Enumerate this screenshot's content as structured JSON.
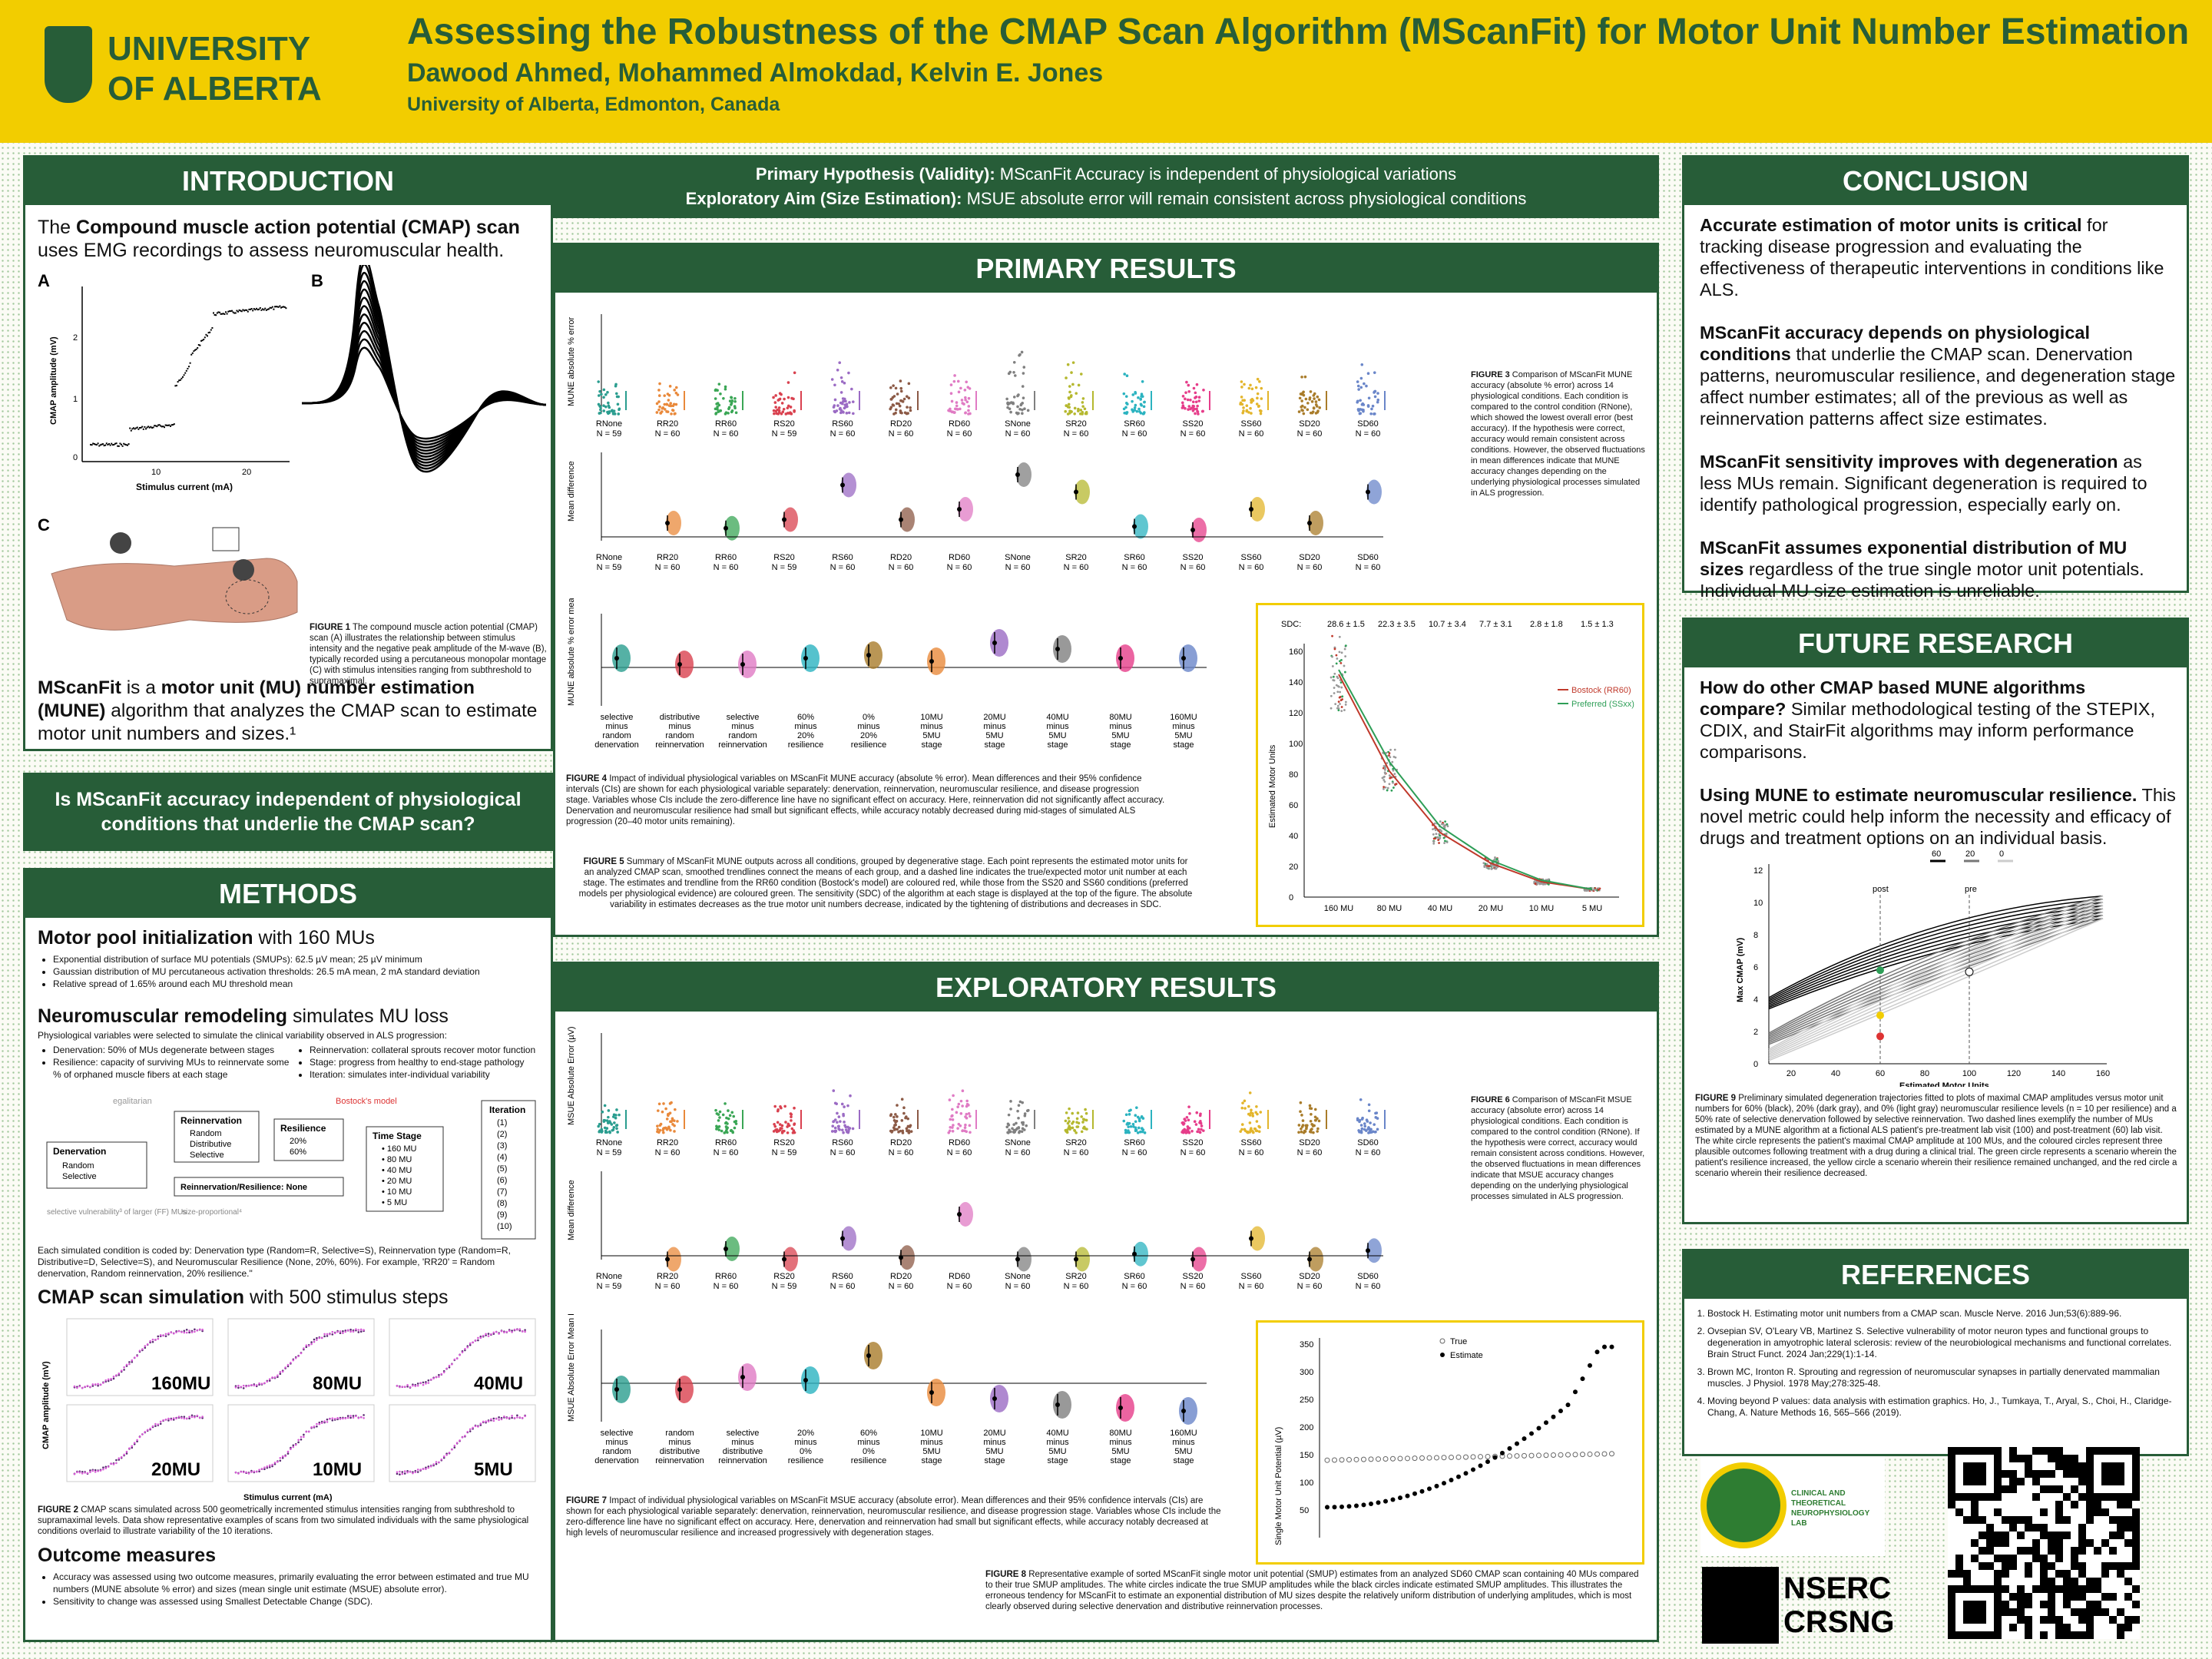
{
  "header": {
    "logo_text": "UNIVERSITY\nOF ALBERTA",
    "title": "Assessing the Robustness of the CMAP Scan Algorithm (MScanFit) for Motor Unit Number Estimation",
    "authors": "Dawood Ahmed, Mohammed Almokdad, Kelvin E. Jones",
    "affiliation": "University of Alberta, Edmonton, Canada"
  },
  "intro": {
    "heading": "INTRODUCTION",
    "p1_bold": "Compound muscle action potential (CMAP) scan",
    "p1_pre": "The ",
    "p1_post": " uses EMG recordings to assess neuromuscular health.",
    "labels": [
      "A",
      "B",
      "C"
    ],
    "axis_y": "CMAP amplitude (mV)",
    "axis_x": "Stimulus current (mA)",
    "ticks_x": [
      "10",
      "20"
    ],
    "ticks_y": [
      "0",
      "1",
      "2"
    ],
    "fig1_caption_bold": "FIGURE 1",
    "fig1_caption": " The compound muscle action potential (CMAP) scan (A) illustrates the relationship between stimulus intensity and the negative peak amplitude of the M-wave (B), typically recorded using a percutaneous monopolar montage (C) with stimulus intensities ranging from subthreshold to supramaximal.",
    "p2_pre": "MScanFit",
    "p2_mid": " is a ",
    "p2_bold": "motor unit (MU) number estimation (MUNE)",
    "p2_post": " algorithm that analyzes the CMAP scan to estimate motor unit numbers and sizes.¹"
  },
  "question": "Is MScanFit accuracy independent of physiological conditions that underlie the CMAP scan?",
  "methods": {
    "heading": "METHODS",
    "s1_bold": "Motor pool initialization",
    "s1_rest": " with 160 MUs",
    "s1_items": [
      "Exponential distribution of surface MU potentials (SMUPs): 62.5 µV mean; 25 µV minimum",
      "Gaussian distribution of MU percutaneous activation thresholds: 26.5 mA mean, 2 mA standard deviation",
      "Relative spread of 1.65% around each MU threshold mean"
    ],
    "s2_bold": "Neuromuscular remodeling",
    "s2_rest": " simulates MU loss",
    "s2_intro": "Physiological variables were selected to simulate the clinical variability observed in ALS progression:",
    "s2_left": [
      "Denervation: 50% of MUs degenerate between stages",
      "Resilience: capacity of surviving MUs to reinnervate some % of orphaned muscle fibers at each stage"
    ],
    "s2_right": [
      "Reinnervation: collateral sprouts recover motor function",
      "Stage: progress from healthy to end-stage pathology",
      "Iteration: simulates inter-individual variability"
    ],
    "diag": {
      "egalitarian": "egalitarian",
      "bostock": "Bostock's model",
      "denerv": "Denervation",
      "denerv_items": [
        "Random",
        "Selective"
      ],
      "reinn": "Reinnervation",
      "reinn_items": [
        "Random",
        "Distributive",
        "Selective"
      ],
      "resil": "Resilience",
      "resil_items": [
        "20%",
        "60%"
      ],
      "reinres": "Reinnervation/Resilience: None",
      "stage": "Time Stage",
      "stage_items": [
        "160 MU",
        "80 MU",
        "40 MU",
        "20 MU",
        "10 MU",
        "5 MU"
      ],
      "iter": "Iteration",
      "iter_items": [
        "(1)",
        "(2)",
        "(3)",
        "(4)",
        "(5)",
        "(6)",
        "(7)",
        "(8)",
        "(9)",
        "(10)"
      ],
      "selvul": "selective vulnerability³ of larger (FF) MUs",
      "sizeprop": "size-proportional⁴"
    },
    "code_text": "Each simulated condition is coded by: Denervation type (Random=R, Selective=S), Reinnervation type (Random=R, Distributive=D, Selective=S), and Neuromuscular Resilience (None, 20%, 60%). For example, 'RR20' = Random denervation, Random reinnervation, 20% resilience.\"",
    "s3_bold": "CMAP scan simulation",
    "s3_rest": " with 500 stimulus steps",
    "panels": [
      "160MU",
      "80MU",
      "40MU",
      "20MU",
      "10MU",
      "5MU"
    ],
    "fig2_ylabel": "CMAP amplitude (mV)",
    "fig2_xlabel": "Stimulus current (mA)",
    "fig2_caption_bold": "FIGURE 2",
    "fig2_caption": " CMAP scans simulated across 500 geometrically incremented stimulus intensities ranging from subthreshold to supramaximal levels. Data show representative examples of scans from two simulated individuals with the same physiological conditions overlaid to illustrate variability of the 10 iterations.",
    "s4": "Outcome measures",
    "s4_items": [
      "Accuracy was assessed using two outcome measures, primarily evaluating the error between estimated and true MU numbers (MUNE absolute % error) and sizes (mean single unit estimate (MSUE) absolute error).",
      "Sensitivity to change was assessed using Smallest Detectable Change (SDC)."
    ]
  },
  "hyp": {
    "l1_bold": "Primary Hypothesis (Validity):",
    "l1": " MScanFit Accuracy is independent of physiological variations",
    "l2_bold": "Exploratory Aim (Size Estimation):",
    "l2": " MSUE absolute error will remain consistent across physiological conditions"
  },
  "primary": {
    "heading": "PRIMARY RESULTS",
    "ylabel_top": "MUNE absolute % error",
    "ylabel_mid": "Mean difference",
    "ylabel_f4": "MUNE absolute % error mean difference",
    "fig3_caption_bold": "FIGURE 3",
    "fig3_caption": " Comparison of MScanFit MUNE accuracy (absolute % error) across 14 physiological conditions. Each condition is compared to the control condition (RNone), which showed the lowest overall error (best accuracy). If the hypothesis were correct, accuracy would remain consistent across conditions. However, the observed fluctuations in mean differences indicate that MUNE accuracy changes depending on the underlying physiological processes simulated in ALS progression.",
    "fig4_caption_bold": "FIGURE 4",
    "fig4_caption": " Impact of individual physiological variables on MScanFit MUNE accuracy (absolute % error). Mean differences and their 95% confidence intervals (CIs) are shown for each physiological variable separately: denervation, reinnervation, neuromuscular resilience, and disease progression stage. Variables whose CIs include the zero-difference line have no significant effect on accuracy. Here, reinnervation did not significantly affect accuracy. Denervation and neuromuscular resilience had small but significant effects, while accuracy notably decreased during mid-stages of simulated ALS progression (20–40 motor units remaining).",
    "fig5_caption_bold": "FIGURE 5",
    "fig5_caption": " Summary of MScanFit MUNE outputs across all conditions, grouped by degenerative stage. Each point represents the estimated motor units for an analyzed CMAP scan, smoothed trendlines connect the means of each group, and a dashed line indicates the true/expected motor unit number at each stage. The estimates and trendline from the RR60 condition (Bostock's model) are coloured red, while those from the SS20 and SS60 conditions (preferred models per physiological evidence) are coloured green. The sensitivity (SDC) of the algorithm at each stage is displayed at the top of the figure. The absolute variability in estimates decreases as the true motor unit numbers decrease, indicated by the tightening of distributions and decreases in SDC.",
    "fig5": {
      "sdc_label": "SDC:",
      "sdc": [
        "28.6 ± 1.5",
        "22.3 ± 3.5",
        "10.7 ± 3.4",
        "7.7 ± 3.1",
        "2.8 ± 1.8",
        "1.5 ± 1.3"
      ],
      "ylabel": "Estimated Motor Units",
      "xticks": [
        "160 MU",
        "80 MU",
        "40 MU",
        "20 MU",
        "10 MU",
        "5 MU"
      ],
      "yticks": [
        "0",
        "20",
        "40",
        "60",
        "80",
        "100",
        "120",
        "140",
        "160"
      ],
      "legend": [
        "Bostock (RR60)",
        "Preferred (SSxx)"
      ]
    }
  },
  "conditions": [
    "RNone",
    "RR20",
    "RR60",
    "RS20",
    "RS60",
    "RD20",
    "RD60",
    "SNone",
    "SR20",
    "SR60",
    "SS20",
    "SS60",
    "SD20",
    "SD60"
  ],
  "n_values": [
    "N = 59",
    "N = 60",
    "N = 60",
    "N = 59",
    "N = 60",
    "N = 60",
    "N = 60",
    "N = 60",
    "N = 60",
    "N = 60",
    "N = 60",
    "N = 60",
    "N = 60",
    "N = 60"
  ],
  "f4_groups": [
    "selective minus random denervation",
    "distributive minus random reinnervation",
    "selective minus random reinnervation",
    "60% minus 20% resilience",
    "0% minus 20% resilience",
    "10MU minus 5MU stage",
    "20MU minus 5MU stage",
    "40MU minus 5MU stage",
    "80MU minus 5MU stage",
    "160MU minus 5MU stage"
  ],
  "f7_groups": [
    "selective minus random denervation",
    "random minus distributive reinnervation",
    "selective minus distributive reinnervation",
    "20% minus 0% resilience",
    "60% minus 0% resilience",
    "10MU minus 5MU stage",
    "20MU minus 5MU stage",
    "40MU minus 5MU stage",
    "80MU minus 5MU stage",
    "160MU minus 5MU stage"
  ],
  "explor": {
    "heading": "EXPLORATORY RESULTS",
    "ylabel_top": "MSUE Absolute Error (µV)",
    "ylabel_mid": "Mean difference",
    "ylabel_f7": "MSUE Absolute Error Mean Difference",
    "fig6_caption_bold": "FIGURE 6",
    "fig6_caption": " Comparison of MScanFit MSUE accuracy (absolute error) across 14 physiological conditions. Each condition is compared to the control condition (RNone). If the hypothesis were correct, accuracy would remain consistent across conditions. However, the observed fluctuations in mean differences indicate that MSUE accuracy changes depending on the underlying physiological processes simulated in ALS progression.",
    "fig7_caption_bold": "FIGURE 7",
    "fig7_caption": " Impact of individual physiological variables on MScanFit MSUE accuracy (absolute error). Mean differences and their 95% confidence intervals (CIs) are shown for each physiological variable separately: denervation, reinnervation, neuromuscular resilience, and disease progression stage. Variables whose CIs include the zero-difference line have no significant effect on accuracy. Here, denervation and reinnervation had small but significant effects, while accuracy notably decreased at high levels of neuromuscular resilience and increased progressively with degeneration stages.",
    "fig8_caption_bold": "FIGURE 8",
    "fig8_caption": " Representative example of sorted MScanFit single motor unit potential (SMUP) estimates from an analyzed SD60 CMAP scan containing 40 MUs compared to their true SMUP amplitudes. The white circles indicate the true SMUP amplitudes while the black circles indicate estimated SMUP amplitudes. This illustrates the erroneous tendency for MScanFit to estimate an exponential distribution of MU sizes despite the relatively uniform distribution of underlying amplitudes, which is most clearly observed during selective denervation and distributive reinnervation processes.",
    "fig8": {
      "ylabel": "Single Motor Unit Potential (µV)",
      "yticks": [
        "50",
        "100",
        "150",
        "200",
        "250",
        "300",
        "350"
      ],
      "legend": [
        "True",
        "Estimate"
      ]
    }
  },
  "conclusion": {
    "heading": "CONCLUSION",
    "p": [
      {
        "b": "Accurate estimation of motor units is critical",
        "t": " for tracking disease progression and evaluating the effectiveness of therapeutic interventions in conditions like ALS."
      },
      {
        "b": "MScanFit accuracy depends on physiological conditions",
        "t": " that underlie the CMAP scan. Denervation patterns, neuromuscular resilience, and degeneration stage affect number estimates; all of the previous as well as reinnervation patterns affect size estimates."
      },
      {
        "b": "MScanFit sensitivity improves with degeneration",
        "t": " as less MUs remain. Significant degeneration is required to identify pathological progression, especially early on."
      },
      {
        "b": "MScanFit assumes exponential distribution of MU sizes",
        "t": " regardless of the true single motor unit potentials. Individual MU size estimation is unreliable."
      }
    ]
  },
  "future": {
    "heading": "FUTURE RESEARCH",
    "p": [
      {
        "b": "How do other CMAP based MUNE algorithms compare?",
        "t": " Similar methodological testing of the STEPIX, CDIX, and StairFit algorithms may inform performance comparisons."
      },
      {
        "b": "Using MUNE to estimate neuromuscular resilience.",
        "t": " This novel metric could help  inform the necessity and efficacy of drugs and treatment options on an individual basis."
      }
    ],
    "fig9": {
      "ylabel": "Max CMAP (mV)",
      "xlabel": "Estimated Motor Units",
      "xticks": [
        "20",
        "40",
        "60",
        "80",
        "100",
        "120",
        "140",
        "160"
      ],
      "yticks": [
        "0",
        "2",
        "4",
        "6",
        "8",
        "10",
        "12"
      ],
      "legend": [
        "60",
        "20",
        "0"
      ],
      "post": "post",
      "pre": "pre"
    },
    "fig9_caption_bold": "FIGURE 9",
    "fig9_caption": " Preliminary simulated degeneration trajectories fitted to plots of maximal CMAP amplitudes versus motor unit numbers for 60% (black), 20% (dark gray), and 0% (light gray) neuromuscular resilience levels (n = 10 per resilience) and a 50% rate of selective denervation followed by selective reinnervation. Two dashed lines exemplify the number of MUs estimated by a MUNE algorithm at a fictional ALS patient's pre-treatment lab visit (100) and post-treatment (60) lab visit. The white circle represents the patient's maximal CMAP amplitude at 100 MUs, and the coloured circles represent three plausible outcomes following treatment with a drug during a clinical trial. The green circle represents a scenario wherein the patient's resilience increased, the yellow circle a scenario wherein their resilience remained unchanged, and the red circle a scenario wherein their resilience decreased."
  },
  "references": {
    "heading": "REFERENCES",
    "items": [
      "Bostock H. Estimating motor unit numbers from a CMAP scan. Muscle Nerve. 2016 Jun;53(6):889-96.",
      "Ovsepian SV, O'Leary VB, Martinez S. Selective vulnerability of motor neuron types and functional groups to degeneration in amyotrophic lateral sclerosis: review of the neurobiological mechanisms and functional correlates. Brain Struct Funct. 2024 Jan;229(1):1-14.",
      "Brown MC, Ironton R. Sprouting and regression of neuromuscular synapses in partially denervated mammalian muscles. J Physiol. 1978 May;278:325-48.",
      "Moving beyond P values: data analysis with estimation graphics. Ho, J., Tumkaya, T., Aryal, S., Choi, H., Claridge-Chang, A. Nature Methods 16, 565–566 (2019)."
    ]
  },
  "logos": {
    "lab": "CLINICAL AND THEORETICAL NEUROPHYSIOLOGY LAB",
    "nserc1": "NSERC",
    "nserc2": "CRSNG"
  },
  "chart_data": [
    {
      "type": "scatter",
      "title": "Figure 3 MUNE absolute % error",
      "categories": [
        "RNone",
        "RR20",
        "RR60",
        "RS20",
        "RS60",
        "RD20",
        "RD60",
        "SNone",
        "SR20",
        "SR60",
        "SS20",
        "SS60",
        "SD20",
        "SD60"
      ],
      "mean_difference": [
        0,
        4,
        2.5,
        5,
        15,
        5,
        8,
        18,
        13,
        3,
        2,
        8,
        4,
        13
      ],
      "ylim": [
        0,
        100
      ]
    },
    {
      "type": "scatter",
      "title": "Figure 6 MSUE absolute error",
      "categories": [
        "RNone",
        "RR20",
        "RR60",
        "RS20",
        "RS60",
        "RD20",
        "RD60",
        "SNone",
        "SR20",
        "SR60",
        "SS20",
        "SS60",
        "SD20",
        "SD60"
      ],
      "mean_difference": [
        0,
        -1,
        2,
        -1,
        5,
        -0.5,
        12,
        -1,
        -1,
        0.5,
        -1,
        5,
        -1,
        1.5
      ]
    },
    {
      "type": "line",
      "title": "Figure 5",
      "x": [
        "160 MU",
        "80 MU",
        "40 MU",
        "20 MU",
        "10 MU",
        "5 MU"
      ],
      "series": [
        {
          "name": "Bostock (RR60)",
          "values": [
            145,
            82,
            42,
            22,
            10,
            5
          ]
        },
        {
          "name": "Preferred (SSxx)",
          "values": [
            148,
            88,
            46,
            24,
            11,
            5
          ]
        }
      ],
      "ylim": [
        0,
        160
      ]
    },
    {
      "type": "scatter",
      "title": "Figure 8",
      "series": [
        {
          "name": "True",
          "values": [
            140,
            142,
            143,
            144,
            145,
            146,
            147,
            148,
            149,
            150
          ]
        },
        {
          "name": "Estimate",
          "values": [
            55,
            70,
            80,
            85,
            90,
            95,
            100,
            110,
            125,
            140,
            160,
            175,
            190,
            210,
            230,
            260,
            300,
            345
          ]
        }
      ],
      "ylim": [
        0,
        350
      ]
    }
  ]
}
